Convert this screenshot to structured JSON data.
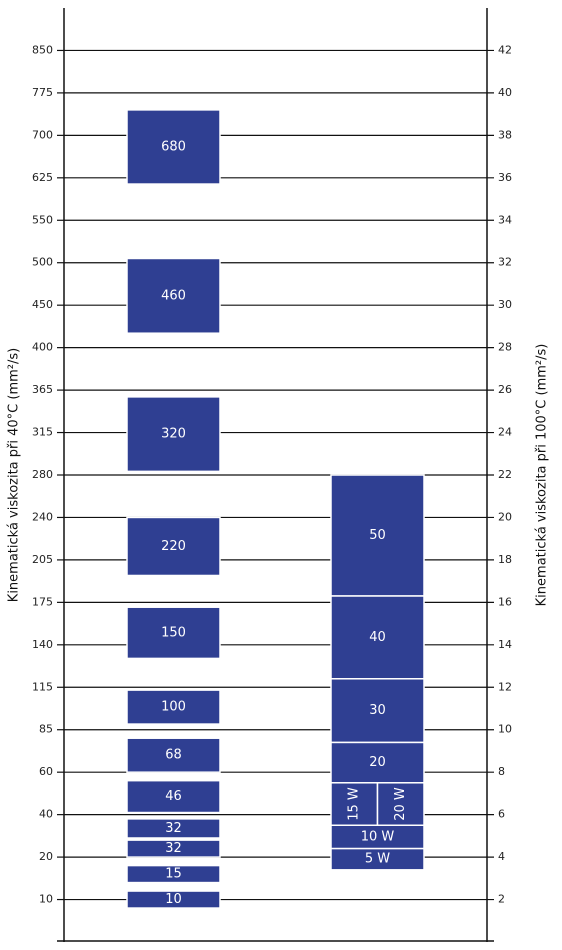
{
  "chart_data": {
    "type": "range-boxes",
    "ylabel": "Kinematická viskozita při 40°C (mm²/s)",
    "y2label": "Kinematická viskozita při 100°C (mm²/s)",
    "yticks": [
      10,
      20,
      40,
      60,
      85,
      115,
      140,
      175,
      205,
      240,
      280,
      315,
      365,
      400,
      450,
      500,
      550,
      625,
      700,
      775,
      850
    ],
    "y2lim": [
      0,
      44
    ],
    "y2ticks": [
      2,
      4,
      6,
      8,
      10,
      12,
      14,
      16,
      18,
      20,
      22,
      24,
      26,
      28,
      30,
      32,
      34,
      36,
      38,
      40,
      42
    ],
    "color": "#2f3f92",
    "series": [
      {
        "axis": "y",
        "boxes": [
          {
            "label": "680",
            "range": [
              614,
              745
            ]
          },
          {
            "label": "460",
            "range": [
              417,
              505
            ]
          },
          {
            "label": "320",
            "range": [
              283,
              357
            ]
          },
          {
            "label": "220",
            "range": [
              194,
              240
            ]
          },
          {
            "label": "150",
            "range": [
              132,
              171
            ]
          },
          {
            "label": "100",
            "range": [
              89,
              113
            ]
          },
          {
            "label": "68",
            "range": [
              60,
              80
            ]
          },
          {
            "label": "46",
            "range": [
              41,
              56
            ]
          },
          {
            "label": "32",
            "range": [
              29,
              38
            ]
          },
          {
            "label": "32",
            "range": [
              20,
              28
            ]
          },
          {
            "label": "15",
            "range": [
              14,
              18
            ]
          },
          {
            "label": "10",
            "range": [
              8,
              12
            ]
          }
        ]
      },
      {
        "axis": "y2",
        "boxes": [
          {
            "label": "50",
            "range": [
              16.3,
              22
            ]
          },
          {
            "label": "40",
            "range": [
              12.4,
              16.3
            ]
          },
          {
            "label": "30",
            "range": [
              9.4,
              12.4
            ]
          },
          {
            "label": "20",
            "range": [
              7.5,
              9.4
            ]
          },
          {
            "label": "15 W",
            "range": [
              5.5,
              7.5
            ]
          },
          {
            "label": "20 W",
            "range": [
              5.5,
              7.5
            ]
          },
          {
            "label": "10 W",
            "range": [
              4.4,
              5.5
            ]
          },
          {
            "label": "5 W",
            "range": [
              3.4,
              4.4
            ]
          }
        ]
      }
    ]
  }
}
